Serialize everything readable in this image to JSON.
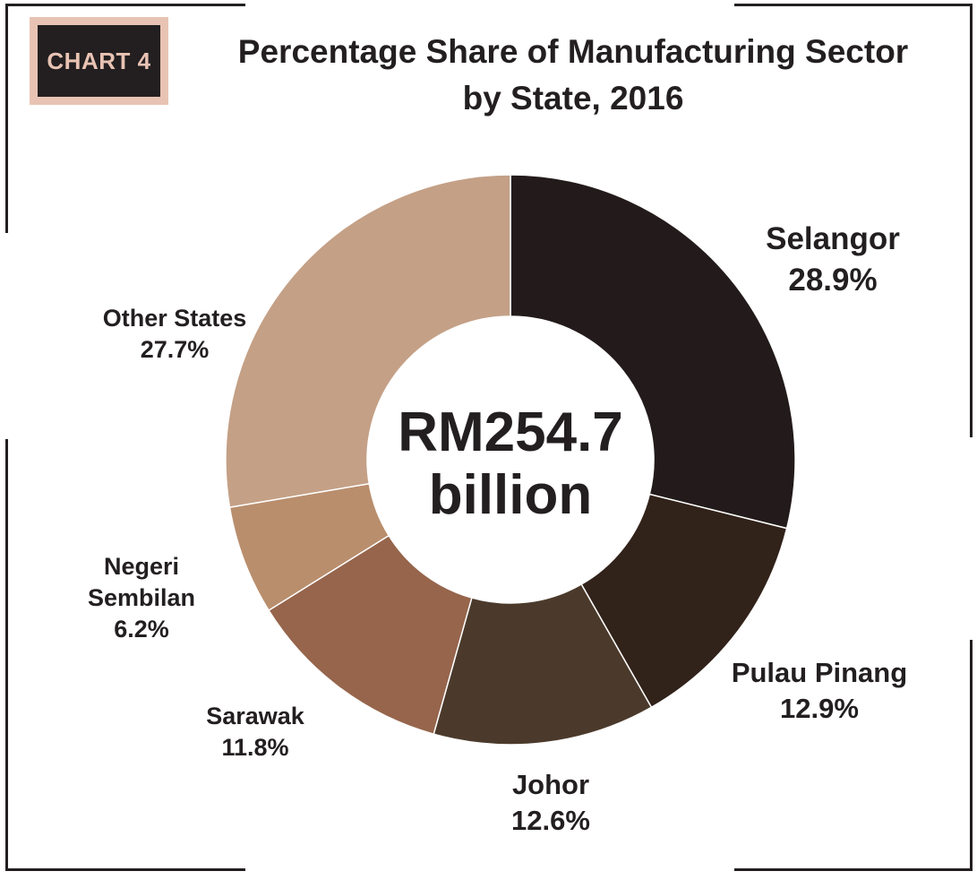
{
  "badge": {
    "label": "CHART 4"
  },
  "chart_data": {
    "type": "pie",
    "title": "Percentage Share of Manufacturing Sector",
    "subtitle": "by State, 2016",
    "center_label": {
      "line1": "RM254.7",
      "line2": "billion"
    },
    "slices": [
      {
        "name": "Selangor",
        "value_label": "28.9%",
        "value": 28.9,
        "color": "#231b1b"
      },
      {
        "name": "Pulau Pinang",
        "value_label": "12.9%",
        "value": 12.9,
        "color": "#31221a"
      },
      {
        "name": "Johor",
        "value_label": "12.6%",
        "value": 12.6,
        "color": "#4b3a2b"
      },
      {
        "name": "Sarawak",
        "value_label": "11.8%",
        "value": 11.8,
        "color": "#96654c"
      },
      {
        "name": "Negeri Sembilan",
        "name_lines": [
          "Negeri",
          "Sembilan"
        ],
        "value_label": "6.2%",
        "value": 6.2,
        "color": "#b98e6d"
      },
      {
        "name": "Other States",
        "value_label": "27.7%",
        "value": 27.7,
        "color": "#c4a086"
      }
    ]
  }
}
